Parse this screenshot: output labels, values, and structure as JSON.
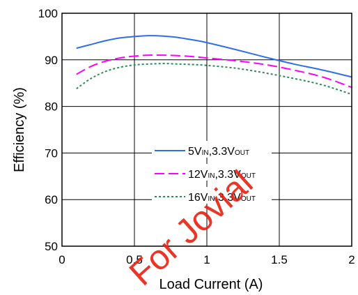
{
  "chart_data": {
    "type": "line",
    "xlabel": "Load Current (A)",
    "ylabel": "Efficiency (%)",
    "xlim": [
      0,
      2
    ],
    "ylim": [
      50,
      100
    ],
    "x_ticks": [
      "0",
      "0.5",
      "1",
      "1.5",
      "2"
    ],
    "y_ticks": [
      "50",
      "60",
      "70",
      "80",
      "90",
      "100"
    ],
    "x_tick_values": [
      0,
      0.5,
      1,
      1.5,
      2
    ],
    "y_tick_values": [
      50,
      60,
      70,
      80,
      90,
      100
    ],
    "grid": true,
    "legend_position": "center",
    "series": [
      {
        "name": "5VIN,3.3VOUT",
        "name_parts": [
          "5V",
          "IN",
          ",3.3V",
          "OUT"
        ],
        "color": "#2f6fe6",
        "style": "solid",
        "x": [
          0.1,
          0.2,
          0.3,
          0.4,
          0.5,
          0.6,
          0.7,
          0.8,
          0.9,
          1.0,
          1.2,
          1.4,
          1.6,
          1.8,
          2.0
        ],
        "y": [
          92.5,
          93.3,
          94.1,
          94.7,
          95.0,
          95.2,
          95.1,
          94.8,
          94.3,
          93.7,
          92.2,
          90.6,
          89.1,
          87.8,
          86.3
        ]
      },
      {
        "name": "12VIN,3.3VOUT",
        "name_parts": [
          "12V",
          "IN",
          ",3.3V",
          "OUT"
        ],
        "color": "#ff00ff",
        "style": "dashed",
        "x": [
          0.1,
          0.2,
          0.3,
          0.4,
          0.5,
          0.6,
          0.7,
          0.8,
          0.9,
          1.0,
          1.2,
          1.4,
          1.6,
          1.8,
          2.0
        ],
        "y": [
          86.9,
          88.6,
          89.7,
          90.4,
          90.8,
          91.0,
          91.0,
          90.9,
          90.7,
          90.4,
          89.8,
          89.0,
          87.8,
          86.3,
          84.1
        ]
      },
      {
        "name": "16VIN,3.3VOUT",
        "name_parts": [
          "16V",
          "IN",
          ",3.3V",
          "OUT"
        ],
        "color": "#2e8b57",
        "style": "dotted",
        "x": [
          0.1,
          0.2,
          0.3,
          0.4,
          0.5,
          0.6,
          0.7,
          0.8,
          0.9,
          1.0,
          1.2,
          1.4,
          1.6,
          1.8,
          2.0
        ],
        "y": [
          83.8,
          86.0,
          87.5,
          88.4,
          88.9,
          89.1,
          89.2,
          89.1,
          89.0,
          88.8,
          88.2,
          87.2,
          86.0,
          84.6,
          82.6
        ]
      }
    ]
  },
  "watermark": {
    "text": "For Jovial",
    "color": "#e8200f"
  }
}
